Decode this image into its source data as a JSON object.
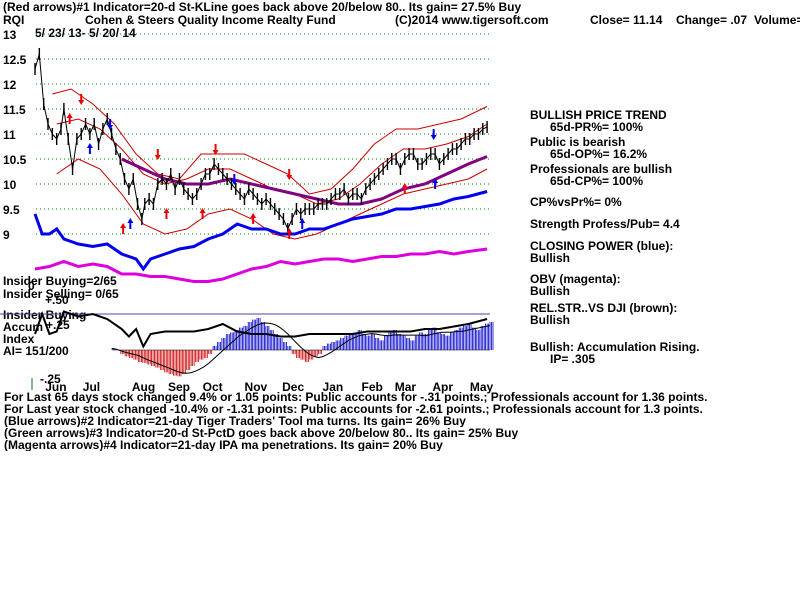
{
  "header": {
    "line1": "(Red arrows)#1 Indicator=20-d St-KLine goes back above 20/below 80.. Its gain= 27.5% Buy",
    "symbol": "RQI",
    "fund_name": "Cohen & Steers Quality Income Realty Fund",
    "copyright": "(C)2014 www.tigersoft.com",
    "close_text": "Close= 11.14",
    "change_text": "Change= .07",
    "volume_text": "Volume=",
    "date_range": "5/ 23/ 13- 5/ 20/ 14"
  },
  "panel_labels": {
    "insider_buying": "Insider Buying=2/65",
    "insider_selling": "Insider Selling= 0/65",
    "insider_buying2": "Insider Buying",
    "accum": "Accum",
    "index": "Index",
    "ai": "AI= 151/200",
    "plus25": "+.25",
    "plus50": "+.50",
    "minus25": "-.25",
    "zero": "0"
  },
  "side_panel": {
    "l1": "BULLISH PRICE TREND",
    "l2": "65d-PR%= 100%",
    "l3": "Public is bearish",
    "l4": "65d-OP%= 16.2%",
    "l5": "Professionals are bullish",
    "l6": "65d-CP%= 100%",
    "l7": "CP%vsPr%= 0%",
    "l8": "Strength Profess/Pub= 4.4",
    "l9": "CLOSING POWER (blue):",
    "l10": "Bullish",
    "l11": "OBV (magenta):",
    "l12": "Bullish",
    "l13": "REL.STR..VS DJI (brown):",
    "l14": "Bullish",
    "l15": "Bullish: Accumulation Rising.",
    "l16": "IP= .305"
  },
  "notes": [
    "For Last 65 days stock changed 9.4% or 1.05 points: Public accounts for -.31 points.; Professionals account for 1.36 points.",
    "For Last year stock changed -10.4% or -1.31 points: Public accounts for -2.61 points.; Professionals account for 1.3 points.",
    "(Blue arrows)#2 Indicator=21-day Tiger Traders' Tool ma turns. Its gain= 26% Buy",
    "(Green arrows)#3 Indicator=20-d St-PctD goes back above 20/below 80.. Its gain= 25% Buy",
    "(Magenta arrows)#4 Indicator=21-day IPA ma penetrations. Its gain= 20% Buy"
  ],
  "colors": {
    "price": "#000000",
    "bands": "#cc0000",
    "ma": "#800080",
    "closing_power": "#0000ee",
    "obv": "#dd00dd",
    "rel_str": "#000000",
    "accum_pos": "#0000cc",
    "accum_neg": "#cc0000",
    "grid": "#008000",
    "buy_arrow": "#ee0000",
    "sell_arrow": "#0000ee"
  },
  "chart_data": {
    "type": "line",
    "title": "Cohen & Steers Quality Income Realty Fund",
    "ylim": [
      8.3,
      13.1
    ],
    "y_ticks": [
      9,
      9.5,
      10,
      10.5,
      11,
      11.5,
      12,
      12.5,
      13
    ],
    "y_tick_labels": [
      "9",
      "9.5",
      "10",
      "10.5",
      "11",
      "11.5",
      "12",
      "12.5",
      "13"
    ],
    "x_month_labels": [
      "Jun",
      "Jul",
      "Aug",
      "Sep",
      "Oct",
      "Nov",
      "Dec",
      "Jan",
      "Feb",
      "Mar",
      "Apr",
      "May"
    ],
    "x_month_positions": [
      1.4,
      4.0,
      7.4,
      9.9,
      12.3,
      15.2,
      17.8,
      20.6,
      23.3,
      25.6,
      28.2,
      30.8
    ],
    "x_range": [
      0,
      31.5
    ],
    "price_close": [
      [
        0,
        12.3
      ],
      [
        0.3,
        12.6
      ],
      [
        0.6,
        11.6
      ],
      [
        0.9,
        11.2
      ],
      [
        1.2,
        11.0
      ],
      [
        1.5,
        10.9
      ],
      [
        1.8,
        11.1
      ],
      [
        2.0,
        11.5
      ],
      [
        2.3,
        10.9
      ],
      [
        2.6,
        10.3
      ],
      [
        2.9,
        10.9
      ],
      [
        3.2,
        11.0
      ],
      [
        3.5,
        11.2
      ],
      [
        3.8,
        11.0
      ],
      [
        4.1,
        11.2
      ],
      [
        4.4,
        10.8
      ],
      [
        4.7,
        11.1
      ],
      [
        5.0,
        11.3
      ],
      [
        5.3,
        11.0
      ],
      [
        5.6,
        10.7
      ],
      [
        5.9,
        10.5
      ],
      [
        6.2,
        10.1
      ],
      [
        6.5,
        9.9
      ],
      [
        6.8,
        10.1
      ],
      [
        7.1,
        9.6
      ],
      [
        7.4,
        9.3
      ],
      [
        7.6,
        9.6
      ],
      [
        7.9,
        9.7
      ],
      [
        8.2,
        9.6
      ],
      [
        8.5,
        10.0
      ],
      [
        8.8,
        10.1
      ],
      [
        9.1,
        10.0
      ],
      [
        9.4,
        10.2
      ],
      [
        9.7,
        9.9
      ],
      [
        10.0,
        10.1
      ],
      [
        10.3,
        9.9
      ],
      [
        10.6,
        9.8
      ],
      [
        10.9,
        9.7
      ],
      [
        11.2,
        9.8
      ],
      [
        11.5,
        10.0
      ],
      [
        11.8,
        10.2
      ],
      [
        12.1,
        10.2
      ],
      [
        12.4,
        10.4
      ],
      [
        12.7,
        10.3
      ],
      [
        13.0,
        10.2
      ],
      [
        13.3,
        10.1
      ],
      [
        13.6,
        10.0
      ],
      [
        13.9,
        9.9
      ],
      [
        14.2,
        9.8
      ],
      [
        14.5,
        9.7
      ],
      [
        14.8,
        9.9
      ],
      [
        15.1,
        9.8
      ],
      [
        15.4,
        9.7
      ],
      [
        15.7,
        9.6
      ],
      [
        16.0,
        9.7
      ],
      [
        16.3,
        9.6
      ],
      [
        16.6,
        9.5
      ],
      [
        16.9,
        9.4
      ],
      [
        17.2,
        9.3
      ],
      [
        17.5,
        9.1
      ],
      [
        17.8,
        9.3
      ],
      [
        18.1,
        9.5
      ],
      [
        18.4,
        9.4
      ],
      [
        18.7,
        9.5
      ],
      [
        19.0,
        9.5
      ],
      [
        19.3,
        9.5
      ],
      [
        19.6,
        9.6
      ],
      [
        19.9,
        9.6
      ],
      [
        20.2,
        9.6
      ],
      [
        20.5,
        9.7
      ],
      [
        20.8,
        9.8
      ],
      [
        21.1,
        9.8
      ],
      [
        21.4,
        9.9
      ],
      [
        21.7,
        9.7
      ],
      [
        22.0,
        9.8
      ],
      [
        22.3,
        9.8
      ],
      [
        22.6,
        9.7
      ],
      [
        22.9,
        9.9
      ],
      [
        23.2,
        10.0
      ],
      [
        23.5,
        10.1
      ],
      [
        23.8,
        10.2
      ],
      [
        24.1,
        10.3
      ],
      [
        24.4,
        10.4
      ],
      [
        24.7,
        10.5
      ],
      [
        25.0,
        10.5
      ],
      [
        25.3,
        10.3
      ],
      [
        25.6,
        10.5
      ],
      [
        25.9,
        10.6
      ],
      [
        26.2,
        10.6
      ],
      [
        26.5,
        10.4
      ],
      [
        26.8,
        10.4
      ],
      [
        27.1,
        10.5
      ],
      [
        27.4,
        10.6
      ],
      [
        27.7,
        10.6
      ],
      [
        28.0,
        10.4
      ],
      [
        28.3,
        10.5
      ],
      [
        28.6,
        10.6
      ],
      [
        28.9,
        10.7
      ],
      [
        29.2,
        10.7
      ],
      [
        29.5,
        10.8
      ],
      [
        29.8,
        10.9
      ],
      [
        30.1,
        10.9
      ],
      [
        30.4,
        11.0
      ],
      [
        30.7,
        11.0
      ],
      [
        31.0,
        11.1
      ],
      [
        31.3,
        11.14
      ]
    ],
    "upper_band_outer": [
      [
        1.2,
        11.8
      ],
      [
        2.5,
        11.9
      ],
      [
        4.0,
        11.6
      ],
      [
        5.5,
        11.2
      ],
      [
        7.0,
        10.6
      ],
      [
        8.5,
        10.2
      ],
      [
        10.0,
        10.1
      ],
      [
        11.5,
        10.6
      ],
      [
        13.0,
        10.6
      ],
      [
        14.5,
        10.6
      ],
      [
        16.0,
        10.4
      ],
      [
        17.5,
        10.2
      ],
      [
        19.0,
        9.8
      ],
      [
        20.5,
        9.9
      ],
      [
        22.0,
        10.3
      ],
      [
        23.5,
        10.8
      ],
      [
        25.0,
        11.1
      ],
      [
        26.5,
        11.1
      ],
      [
        28.0,
        11.2
      ],
      [
        29.5,
        11.3
      ],
      [
        31.3,
        11.55
      ]
    ],
    "upper_band_inner": [
      [
        1.5,
        11.2
      ],
      [
        3.0,
        11.3
      ],
      [
        4.5,
        11.1
      ],
      [
        6.0,
        10.7
      ],
      [
        7.5,
        10.2
      ],
      [
        9.0,
        10.0
      ],
      [
        10.5,
        10.1
      ],
      [
        12.0,
        10.3
      ],
      [
        13.5,
        10.3
      ],
      [
        15.0,
        10.1
      ],
      [
        16.5,
        9.9
      ],
      [
        18.0,
        9.8
      ],
      [
        19.5,
        9.6
      ],
      [
        21.0,
        9.7
      ],
      [
        22.5,
        10.0
      ],
      [
        24.0,
        10.4
      ],
      [
        25.5,
        10.7
      ],
      [
        27.0,
        10.7
      ],
      [
        28.5,
        10.8
      ],
      [
        30.0,
        10.95
      ],
      [
        31.3,
        11.2
      ]
    ],
    "moving_average": [
      [
        6.0,
        10.5
      ],
      [
        7.5,
        10.3
      ],
      [
        9.0,
        10.1
      ],
      [
        10.5,
        10.0
      ],
      [
        12.0,
        10.0
      ],
      [
        13.5,
        10.1
      ],
      [
        15.0,
        10.0
      ],
      [
        16.5,
        9.9
      ],
      [
        18.0,
        9.8
      ],
      [
        19.5,
        9.7
      ],
      [
        21.0,
        9.6
      ],
      [
        22.5,
        9.6
      ],
      [
        24.0,
        9.7
      ],
      [
        25.5,
        9.9
      ],
      [
        27.0,
        10.0
      ],
      [
        28.5,
        10.2
      ],
      [
        30.0,
        10.4
      ],
      [
        31.3,
        10.55
      ]
    ],
    "lower_band": [
      [
        1.5,
        10.2
      ],
      [
        3.0,
        10.5
      ],
      [
        4.5,
        10.3
      ],
      [
        6.0,
        9.8
      ],
      [
        7.5,
        9.2
      ],
      [
        9.0,
        9.0
      ],
      [
        10.5,
        9.1
      ],
      [
        12.0,
        9.4
      ],
      [
        13.5,
        9.5
      ],
      [
        15.0,
        9.3
      ],
      [
        16.5,
        9.0
      ],
      [
        18.0,
        8.9
      ],
      [
        19.5,
        9.0
      ],
      [
        21.0,
        9.2
      ],
      [
        22.5,
        9.4
      ],
      [
        24.0,
        9.6
      ],
      [
        25.5,
        9.8
      ],
      [
        27.0,
        9.9
      ],
      [
        28.5,
        10.0
      ],
      [
        30.0,
        10.1
      ],
      [
        31.3,
        10.3
      ]
    ],
    "closing_power": [
      [
        0,
        9.4
      ],
      [
        0.5,
        9.0
      ],
      [
        1.0,
        9.0
      ],
      [
        1.5,
        9.1
      ],
      [
        2.0,
        8.9
      ],
      [
        3.0,
        8.8
      ],
      [
        4.0,
        8.75
      ],
      [
        5.0,
        8.8
      ],
      [
        6.0,
        8.6
      ],
      [
        7.0,
        8.5
      ],
      [
        7.5,
        8.3
      ],
      [
        8.0,
        8.5
      ],
      [
        9.0,
        8.6
      ],
      [
        10.0,
        8.7
      ],
      [
        11.0,
        8.75
      ],
      [
        12.0,
        8.9
      ],
      [
        13.0,
        9.0
      ],
      [
        14.0,
        9.2
      ],
      [
        15.0,
        9.1
      ],
      [
        16.0,
        9.1
      ],
      [
        17.0,
        9.0
      ],
      [
        18.0,
        9.0
      ],
      [
        19.0,
        9.1
      ],
      [
        20.0,
        9.1
      ],
      [
        21.0,
        9.2
      ],
      [
        22.0,
        9.3
      ],
      [
        23.0,
        9.35
      ],
      [
        24.0,
        9.4
      ],
      [
        25.0,
        9.5
      ],
      [
        26.0,
        9.5
      ],
      [
        27.0,
        9.55
      ],
      [
        28.0,
        9.6
      ],
      [
        29.0,
        9.7
      ],
      [
        30.0,
        9.75
      ],
      [
        31.3,
        9.85
      ]
    ],
    "obv": [
      [
        0,
        8.3
      ],
      [
        1.0,
        8.35
      ],
      [
        2.0,
        8.45
      ],
      [
        3.0,
        8.35
      ],
      [
        4.0,
        8.4
      ],
      [
        5.0,
        8.35
      ],
      [
        6.0,
        8.2
      ],
      [
        7.0,
        8.2
      ],
      [
        8.0,
        8.15
      ],
      [
        9.0,
        8.15
      ],
      [
        10.0,
        8.1
      ],
      [
        11.0,
        8.05
      ],
      [
        12.0,
        8.05
      ],
      [
        13.0,
        8.1
      ],
      [
        14.0,
        8.2
      ],
      [
        15.0,
        8.3
      ],
      [
        16.0,
        8.35
      ],
      [
        17.0,
        8.45
      ],
      [
        18.0,
        8.4
      ],
      [
        19.0,
        8.45
      ],
      [
        20.0,
        8.5
      ],
      [
        21.0,
        8.5
      ],
      [
        22.0,
        8.45
      ],
      [
        23.0,
        8.5
      ],
      [
        24.0,
        8.55
      ],
      [
        25.0,
        8.55
      ],
      [
        26.0,
        8.6
      ],
      [
        27.0,
        8.6
      ],
      [
        28.0,
        8.65
      ],
      [
        29.0,
        8.6
      ],
      [
        30.0,
        8.65
      ],
      [
        31.3,
        8.7
      ]
    ],
    "rel_str": [
      [
        0,
        7.0
      ],
      [
        0.5,
        7.4
      ],
      [
        1.0,
        7.0
      ],
      [
        1.5,
        7.05
      ],
      [
        2.0,
        7.45
      ],
      [
        3.0,
        7.35
      ],
      [
        4.0,
        7.4
      ],
      [
        5.0,
        7.3
      ],
      [
        6.0,
        7.1
      ],
      [
        6.5,
        6.95
      ],
      [
        7.0,
        7.1
      ],
      [
        7.5,
        6.75
      ],
      [
        8.0,
        7.0
      ],
      [
        9.0,
        7.05
      ],
      [
        10.0,
        7.05
      ],
      [
        11.0,
        7.05
      ],
      [
        12.0,
        7.1
      ],
      [
        13.0,
        7.2
      ],
      [
        14.0,
        7.05
      ],
      [
        15.0,
        7.0
      ],
      [
        16.0,
        7.0
      ],
      [
        17.0,
        6.95
      ],
      [
        18.0,
        6.95
      ],
      [
        19.0,
        7.0
      ],
      [
        20.0,
        7.0
      ],
      [
        21.0,
        7.0
      ],
      [
        22.0,
        7.0
      ],
      [
        23.0,
        7.05
      ],
      [
        24.0,
        7.05
      ],
      [
        25.0,
        7.05
      ],
      [
        26.0,
        7.05
      ],
      [
        27.0,
        7.1
      ],
      [
        28.0,
        7.1
      ],
      [
        29.0,
        7.15
      ],
      [
        30.0,
        7.2
      ],
      [
        31.3,
        7.3
      ]
    ],
    "accum_index": [
      0.02,
      0.0,
      -0.05,
      -0.08,
      -0.1,
      -0.12,
      -0.15,
      -0.16,
      -0.18,
      -0.2,
      -0.22,
      -0.25,
      -0.28,
      -0.3,
      -0.32,
      -0.33,
      -0.3,
      -0.25,
      -0.2,
      -0.15,
      -0.12,
      -0.1,
      -0.05,
      0.05,
      0.1,
      0.15,
      0.2,
      0.22,
      0.25,
      0.28,
      0.3,
      0.35,
      0.38,
      0.4,
      0.35,
      0.3,
      0.25,
      0.2,
      0.15,
      0.1,
      0.05,
      -0.05,
      -0.1,
      -0.12,
      -0.15,
      -0.12,
      -0.08,
      -0.05,
      0.05,
      0.08,
      0.1,
      0.12,
      0.15,
      0.18,
      0.2,
      0.22,
      0.25,
      0.2,
      0.18,
      0.2,
      0.15,
      0.12,
      0.18,
      0.22,
      0.25,
      0.2,
      0.18,
      0.15,
      0.12,
      0.18,
      0.22,
      0.2,
      0.25,
      0.28,
      0.22,
      0.2,
      0.18,
      0.22,
      0.25,
      0.28,
      0.3,
      0.32,
      0.28,
      0.25,
      0.3,
      0.33,
      0.35
    ],
    "buy_arrows_red": [
      [
        2.4,
        11.3
      ],
      [
        6.1,
        9.1
      ],
      [
        9.1,
        9.4
      ],
      [
        11.6,
        9.4
      ],
      [
        15.1,
        9.3
      ],
      [
        17.6,
        9.0
      ],
      [
        25.6,
        9.9
      ]
    ],
    "sell_arrows_red": [
      [
        3.2,
        11.7
      ],
      [
        8.5,
        10.6
      ],
      [
        12.5,
        10.7
      ],
      [
        17.6,
        10.2
      ]
    ],
    "buy_arrows_blue": [
      [
        3.8,
        10.7
      ],
      [
        6.6,
        9.2
      ],
      [
        18.5,
        9.2
      ],
      [
        27.7,
        10.0
      ]
    ],
    "sell_arrows_blue": [
      [
        5.2,
        11.2
      ],
      [
        13.8,
        10.1
      ],
      [
        27.6,
        11.0
      ]
    ]
  }
}
